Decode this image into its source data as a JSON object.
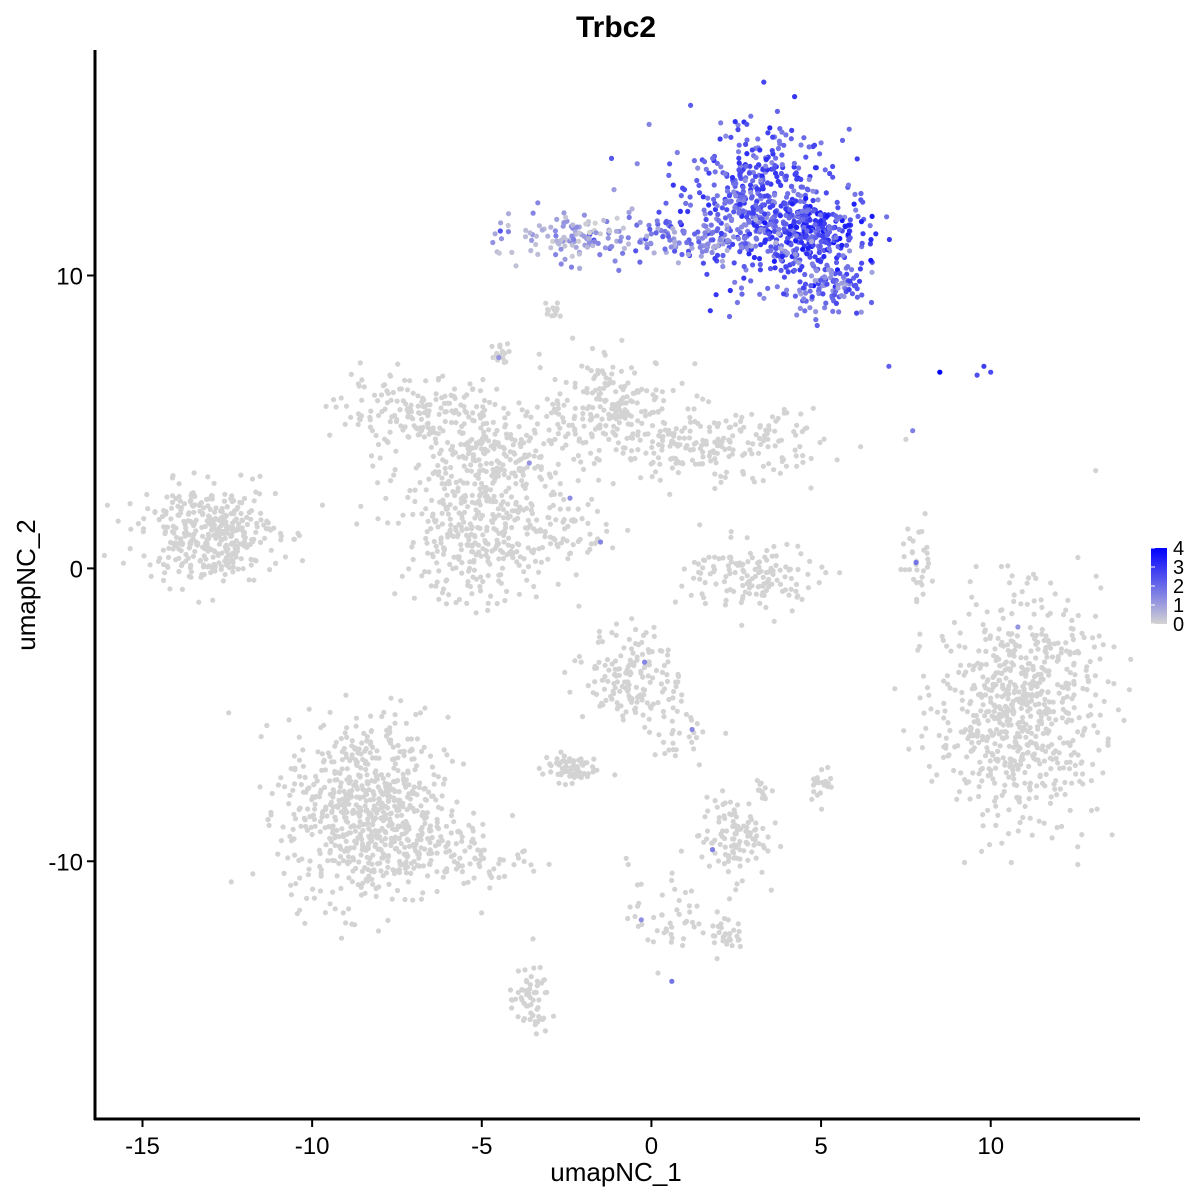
{
  "chart_data": {
    "type": "scatter",
    "title": "Trbc2",
    "xlabel": "umapNC_1",
    "ylabel": "umapNC_2",
    "xlim": [
      -16.4,
      14.4
    ],
    "ylim": [
      -18.8,
      17.7
    ],
    "x_ticks": [
      "-15",
      "-10",
      "-5",
      "0",
      "5",
      "10"
    ],
    "x_tick_values": [
      -15,
      -10,
      -5,
      0,
      5,
      10
    ],
    "y_ticks": [
      "-10",
      "0",
      "10"
    ],
    "y_tick_values": [
      -10,
      0,
      10
    ],
    "grid": false,
    "point_color_low": "#d3d3d3",
    "point_color_high": "#0000ff",
    "legend": {
      "position": "right",
      "labels": [
        "0",
        "1",
        "2",
        "3",
        "4"
      ],
      "values": [
        0,
        1,
        2,
        3,
        4
      ]
    },
    "clusters": [
      {
        "cx": 3.0,
        "cy": 12.5,
        "sx": 1.2,
        "sy": 1.3,
        "n": 500,
        "expr_min": 1.3,
        "expr_max": 3.2
      },
      {
        "cx": 4.8,
        "cy": 11.4,
        "sx": 0.8,
        "sy": 0.6,
        "n": 240,
        "expr_min": 1.6,
        "expr_max": 3.6
      },
      {
        "cx": 5.2,
        "cy": 9.6,
        "sx": 0.6,
        "sy": 0.5,
        "n": 110,
        "expr_min": 0.9,
        "expr_max": 2.8
      },
      {
        "cx": 1.2,
        "cy": 11.2,
        "sx": 1.7,
        "sy": 0.35,
        "n": 130,
        "expr_min": 0.6,
        "expr_max": 2.6
      },
      {
        "cx": -2.3,
        "cy": 11.4,
        "sx": 0.9,
        "sy": 0.45,
        "n": 110,
        "expr_min": 0.0,
        "expr_max": 1.6
      },
      {
        "cx": -6.8,
        "cy": 5.3,
        "sx": 1.2,
        "sy": 0.6,
        "n": 170,
        "expr_min": 0,
        "expr_max": 0
      },
      {
        "cx": -4.5,
        "cy": 3.8,
        "sx": 1.4,
        "sy": 0.8,
        "n": 230,
        "expr_min": 0,
        "expr_max": 0
      },
      {
        "cx": -1.2,
        "cy": 5.6,
        "sx": 1.0,
        "sy": 0.8,
        "n": 180,
        "expr_min": 0,
        "expr_max": 0
      },
      {
        "cx": 1.8,
        "cy": 4.2,
        "sx": 1.6,
        "sy": 0.6,
        "n": 220,
        "expr_min": 0,
        "expr_max": 0
      },
      {
        "cx": -5.0,
        "cy": 1.2,
        "sx": 1.2,
        "sy": 1.2,
        "n": 350,
        "expr_min": 0,
        "expr_max": 0
      },
      {
        "cx": -13.0,
        "cy": 1.2,
        "sx": 1.0,
        "sy": 0.8,
        "n": 380,
        "expr_min": 0,
        "expr_max": 0
      },
      {
        "cx": 3.0,
        "cy": -0.3,
        "sx": 1.0,
        "sy": 0.6,
        "n": 140,
        "expr_min": 0,
        "expr_max": 0
      },
      {
        "cx": 10.8,
        "cy": -4.8,
        "sx": 1.2,
        "sy": 1.9,
        "n": 700,
        "expr_min": 0,
        "expr_max": 0
      },
      {
        "cx": -0.5,
        "cy": -3.7,
        "sx": 0.7,
        "sy": 0.8,
        "n": 160,
        "expr_min": 0,
        "expr_max": 0
      },
      {
        "cx": -8.4,
        "cy": -8.3,
        "sx": 1.2,
        "sy": 1.6,
        "n": 700,
        "expr_min": 0,
        "expr_max": 0
      },
      {
        "cx": -6.0,
        "cy": -9.8,
        "sx": 1.2,
        "sy": 0.5,
        "n": 110,
        "expr_min": 0,
        "expr_max": 0
      },
      {
        "cx": 2.4,
        "cy": -9.2,
        "sx": 0.5,
        "sy": 0.7,
        "n": 110,
        "expr_min": 0,
        "expr_max": 0
      },
      {
        "cx": -2.4,
        "cy": -6.8,
        "sx": 0.4,
        "sy": 0.25,
        "n": 70,
        "expr_min": 0,
        "expr_max": 0
      },
      {
        "cx": -3.6,
        "cy": -14.8,
        "sx": 0.3,
        "sy": 0.6,
        "n": 60,
        "expr_min": 0,
        "expr_max": 0
      },
      {
        "cx": 0.5,
        "cy": -11.8,
        "sx": 0.6,
        "sy": 0.9,
        "n": 50,
        "expr_min": 0,
        "expr_max": 0
      },
      {
        "cx": 2.2,
        "cy": -12.5,
        "sx": 0.25,
        "sy": 0.25,
        "n": 28,
        "expr_min": 0,
        "expr_max": 0
      },
      {
        "cx": 7.9,
        "cy": 0.3,
        "sx": 0.25,
        "sy": 0.7,
        "n": 30,
        "expr_min": 0,
        "expr_max": 0
      },
      {
        "cx": 5.0,
        "cy": -7.3,
        "sx": 0.18,
        "sy": 0.3,
        "n": 22,
        "expr_min": 0,
        "expr_max": 0
      },
      {
        "cx": 3.3,
        "cy": -7.6,
        "sx": 0.15,
        "sy": 0.2,
        "n": 14,
        "expr_min": 0,
        "expr_max": 0
      },
      {
        "cx": 0.9,
        "cy": -5.5,
        "sx": 0.5,
        "sy": 0.5,
        "n": 28,
        "expr_min": 0,
        "expr_max": 0
      },
      {
        "cx": -4.4,
        "cy": 7.3,
        "sx": 0.15,
        "sy": 0.2,
        "n": 16,
        "expr_min": 0,
        "expr_max": 0
      },
      {
        "cx": -2.9,
        "cy": 8.8,
        "sx": 0.15,
        "sy": 0.2,
        "n": 14,
        "expr_min": 0,
        "expr_max": 0
      },
      {
        "cx": -2.6,
        "cy": 1.3,
        "sx": 0.6,
        "sy": 0.5,
        "n": 40,
        "expr_min": 0,
        "expr_max": 0
      }
    ],
    "highlight_points": [
      {
        "x": 8.5,
        "y": 6.7,
        "expr": 4.0
      },
      {
        "x": 7.0,
        "y": 6.9,
        "expr": 2.2
      },
      {
        "x": 9.6,
        "y": 6.6,
        "expr": 2.5
      },
      {
        "x": 9.8,
        "y": 6.9,
        "expr": 2.8
      },
      {
        "x": 10.0,
        "y": 6.7,
        "expr": 2.6
      },
      {
        "x": 7.7,
        "y": 4.7,
        "expr": 1.6
      },
      {
        "x": 7.8,
        "y": 0.2,
        "expr": 1.8
      },
      {
        "x": -1.5,
        "y": 0.9,
        "expr": 1.5
      },
      {
        "x": -2.4,
        "y": 2.4,
        "expr": 1.3
      },
      {
        "x": -0.2,
        "y": -3.2,
        "expr": 1.5
      },
      {
        "x": 1.2,
        "y": -5.5,
        "expr": 1.4
      },
      {
        "x": 1.8,
        "y": -9.6,
        "expr": 1.6
      },
      {
        "x": 0.6,
        "y": -14.1,
        "expr": 1.8
      },
      {
        "x": -0.3,
        "y": -12.0,
        "expr": 1.3
      },
      {
        "x": -4.5,
        "y": 7.2,
        "expr": 1.2
      },
      {
        "x": 10.8,
        "y": -2.0,
        "expr": 1.2
      },
      {
        "x": -3.6,
        "y": 3.6,
        "expr": 1.2
      }
    ]
  }
}
